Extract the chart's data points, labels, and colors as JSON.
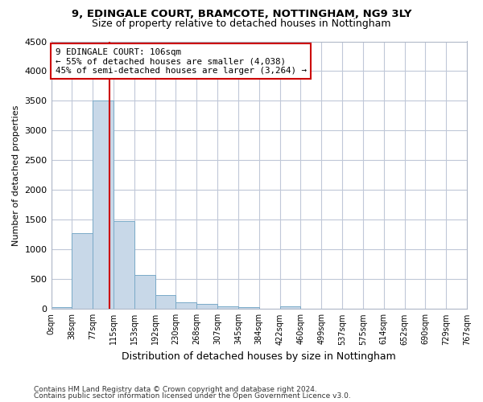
{
  "title1": "9, EDINGALE COURT, BRAMCOTE, NOTTINGHAM, NG9 3LY",
  "title2": "Size of property relative to detached houses in Nottingham",
  "xlabel": "Distribution of detached houses by size in Nottingham",
  "ylabel": "Number of detached properties",
  "footer1": "Contains HM Land Registry data © Crown copyright and database right 2024.",
  "footer2": "Contains public sector information licensed under the Open Government Licence v3.0.",
  "bin_labels": [
    "0sqm",
    "38sqm",
    "77sqm",
    "115sqm",
    "153sqm",
    "192sqm",
    "230sqm",
    "268sqm",
    "307sqm",
    "345sqm",
    "384sqm",
    "422sqm",
    "460sqm",
    "499sqm",
    "537sqm",
    "575sqm",
    "614sqm",
    "652sqm",
    "690sqm",
    "729sqm",
    "767sqm"
  ],
  "bar_values": [
    35,
    1280,
    3500,
    1480,
    575,
    240,
    115,
    80,
    50,
    30,
    0,
    50,
    0,
    0,
    0,
    0,
    0,
    0,
    0,
    0
  ],
  "bar_color": "#c8d8e8",
  "bar_edge_color": "#7aaac8",
  "grid_color": "#c0c8d8",
  "property_sqm": 106,
  "bin_width": 38,
  "annotation_text": "9 EDINGALE COURT: 106sqm\n← 55% of detached houses are smaller (4,038)\n45% of semi-detached houses are larger (3,264) →",
  "annotation_box_color": "#ffffff",
  "annotation_box_edge": "#cc0000",
  "vline_color": "#cc0000",
  "ylim": [
    0,
    4500
  ],
  "yticks": [
    0,
    500,
    1000,
    1500,
    2000,
    2500,
    3000,
    3500,
    4000,
    4500
  ]
}
